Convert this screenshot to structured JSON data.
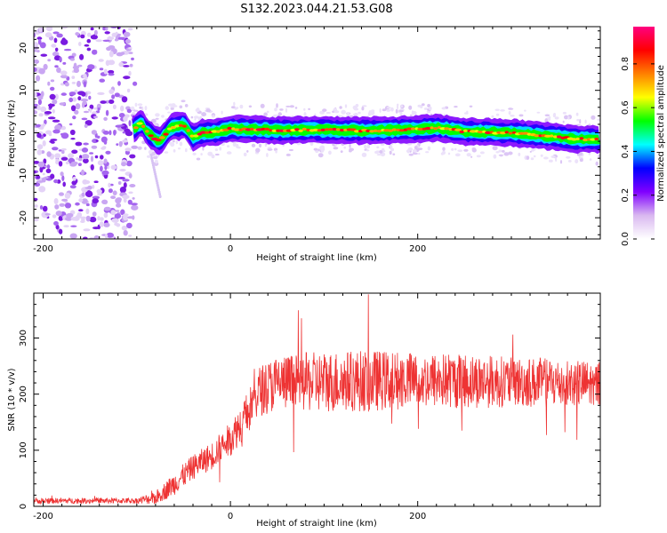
{
  "figure": {
    "title": "S132.2023.044.21.53.G08"
  },
  "chart_data": [
    {
      "type": "heatmap",
      "xlabel": "Height of straight line (km)",
      "ylabel": "Frequency (Hz)",
      "xlim": [
        -210,
        395
      ],
      "ylim": [
        -25,
        25
      ],
      "xticks": [
        -200,
        0,
        200
      ],
      "yticks": [
        -20,
        -10,
        0,
        10,
        20
      ],
      "colorbar": {
        "label": "Normalized spectral amplitude",
        "range": [
          0,
          0.97
        ],
        "ticks": [
          0.0,
          0.2,
          0.4,
          0.6,
          0.8
        ],
        "colors": [
          "#ffffff",
          "#d9b8f0",
          "#8000ff",
          "#0000ff",
          "#00ffff",
          "#00ff00",
          "#ffff00",
          "#ff8000",
          "#ff0000",
          "#ff0080"
        ]
      },
      "noise_region_x": [
        -210,
        -102
      ],
      "ridge": {
        "x": [
          -105,
          -100,
          -95,
          -90,
          -85,
          -80,
          -75,
          -70,
          -65,
          -60,
          -55,
          -50,
          -45,
          -40,
          -30,
          -20,
          -10,
          0,
          20,
          50,
          100,
          150,
          200,
          220,
          250,
          300,
          340,
          370,
          395
        ],
        "freq": [
          0.5,
          1.5,
          2.5,
          0.5,
          -0.5,
          -1.5,
          -1.8,
          -0.5,
          1.0,
          1.5,
          1.5,
          2.0,
          0.5,
          -1.0,
          0.0,
          0.0,
          0.5,
          1.0,
          0.8,
          0.6,
          0.7,
          0.5,
          0.8,
          1.2,
          0.3,
          0.0,
          -0.8,
          -1.5,
          -1.5
        ]
      },
      "faint_streak": {
        "x": [
          -85,
          -75
        ],
        "freq": [
          -5,
          -15
        ]
      }
    },
    {
      "type": "line",
      "xlabel": "Height of straight line (km)",
      "ylabel": "SNR (10 * v/v)",
      "xlim": [
        -210,
        395
      ],
      "ylim": [
        0,
        380
      ],
      "xticks": [
        -200,
        0,
        200
      ],
      "yticks": [
        0,
        100,
        200,
        300
      ],
      "color": "#ee3333",
      "envelope": {
        "x": [
          -210,
          -100,
          -80,
          -60,
          -40,
          -20,
          0,
          20,
          30,
          50,
          100,
          150,
          200,
          250,
          300,
          350,
          395
        ],
        "mean": [
          10,
          10,
          15,
          40,
          70,
          90,
          120,
          170,
          205,
          220,
          222,
          224,
          225,
          224,
          222,
          220,
          218
        ],
        "spread": [
          5,
          5,
          12,
          20,
          22,
          25,
          30,
          40,
          45,
          50,
          55,
          55,
          50,
          50,
          45,
          45,
          40
        ]
      }
    }
  ]
}
